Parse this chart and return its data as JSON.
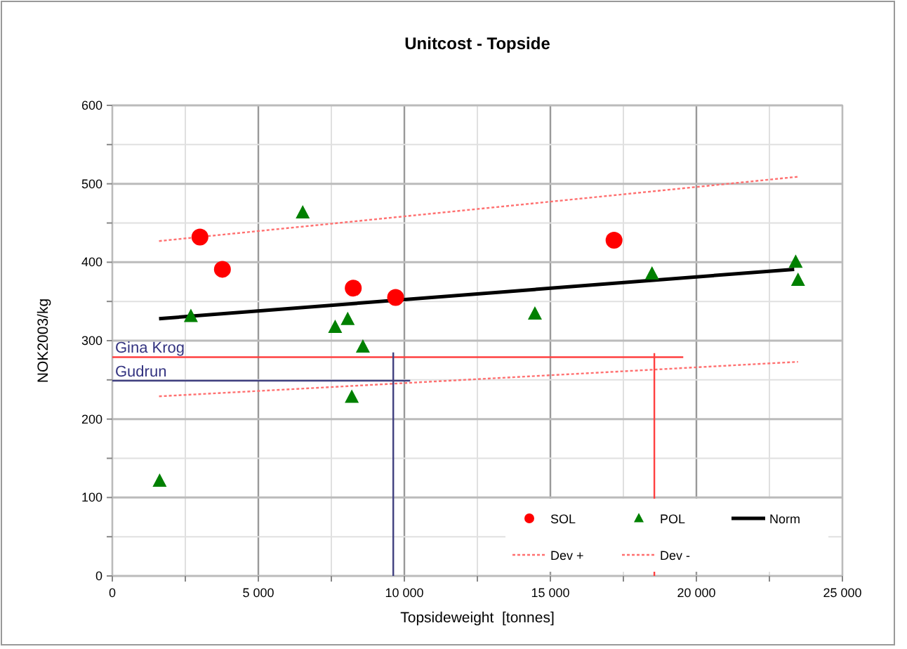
{
  "chart_data": {
    "type": "scatter",
    "title": "Unitcost - Topside",
    "xlabel": "Topsideweight  [tonnes]",
    "ylabel": "NOK2003/kg",
    "xlim": [
      0,
      25000
    ],
    "ylim": [
      0,
      600
    ],
    "xticks": [
      {
        "value": 0,
        "label": "0"
      },
      {
        "value": 2500,
        "label": null
      },
      {
        "value": 5000,
        "label": "5 000"
      },
      {
        "value": 7500,
        "label": null
      },
      {
        "value": 10000,
        "label": "10 000"
      },
      {
        "value": 12500,
        "label": null
      },
      {
        "value": 15000,
        "label": "15 000"
      },
      {
        "value": 17500,
        "label": null
      },
      {
        "value": 20000,
        "label": "20 000"
      },
      {
        "value": 22500,
        "label": null
      },
      {
        "value": 25000,
        "label": "25 000"
      }
    ],
    "yticks": [
      0,
      {
        "value": 50,
        "label": null
      },
      100,
      {
        "value": 150,
        "label": null
      },
      200,
      {
        "value": 250,
        "label": null
      },
      300,
      {
        "value": 350,
        "label": null
      },
      400,
      {
        "value": 450,
        "label": null
      },
      500,
      {
        "value": 550,
        "label": null
      },
      600
    ],
    "grid": true,
    "legend": "bottom right",
    "series": [
      {
        "name": "SOL",
        "marker": "circle",
        "color": "#ff0000",
        "x": [
          3000,
          3770,
          8250,
          9700,
          17180
        ],
        "values": [
          432,
          391,
          367,
          355,
          428
        ]
      },
      {
        "name": "POL",
        "marker": "triangle",
        "color": "#008000",
        "x": [
          1620,
          2690,
          6520,
          7630,
          8060,
          8200,
          8580,
          14470,
          18480,
          23400,
          23480
        ],
        "values": [
          121,
          331,
          463,
          317,
          327,
          228,
          292,
          334,
          385,
          400,
          377
        ]
      },
      {
        "name": "Norm",
        "type": "line",
        "line_style": "solid",
        "color": "#000000",
        "x": [
          1600,
          23350
        ],
        "values": [
          328,
          391
        ]
      },
      {
        "name": "Dev +",
        "type": "line",
        "line_style": "dotted",
        "color": "#ff7070",
        "x": [
          1600,
          23480
        ],
        "values": [
          427,
          509
        ]
      },
      {
        "name": "Dev -",
        "type": "line",
        "line_style": "dotted",
        "color": "#ff7070",
        "x": [
          1600,
          23480
        ],
        "values": [
          229,
          273
        ]
      },
      {
        "type": "line",
        "line_style": "solid",
        "color": "#ff4040",
        "x": [
          0,
          19550
        ],
        "values": [
          279,
          279
        ]
      },
      {
        "type": "line",
        "line_style": "solid",
        "color": "#ff4040",
        "x": [
          18560,
          18560
        ],
        "values": [
          284,
          0
        ]
      },
      {
        "type": "line",
        "line_style": "solid",
        "color": "#404080",
        "x": [
          0,
          10200
        ],
        "values": [
          249,
          249
        ]
      },
      {
        "type": "line",
        "line_style": "solid",
        "color": "#404080",
        "x": [
          9620,
          9620
        ],
        "values": [
          285,
          0
        ]
      }
    ],
    "annotations": [
      {
        "text": "Gina Krog",
        "x": 0,
        "y": 279
      },
      {
        "text": "Gudrun",
        "x": 0,
        "y": 249
      }
    ]
  }
}
